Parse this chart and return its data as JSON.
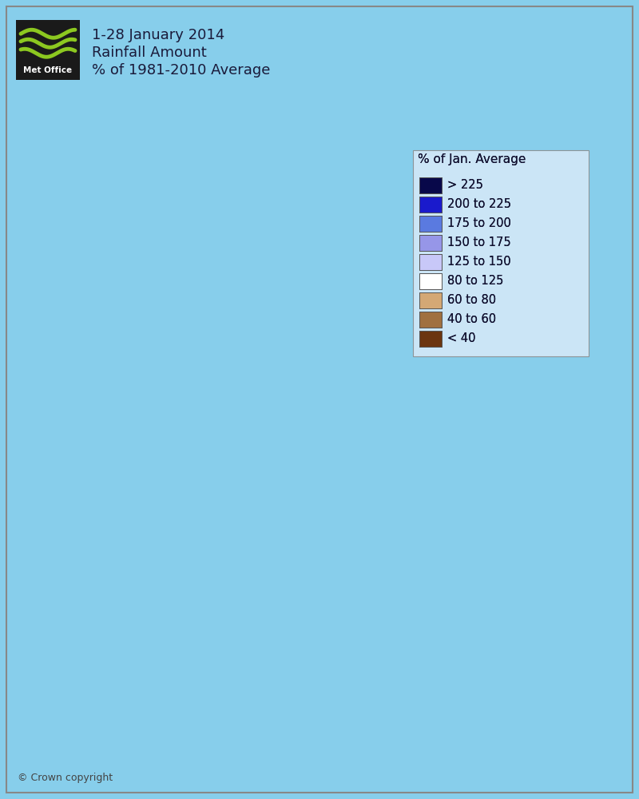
{
  "title_line1": "1-28 January 2014",
  "title_line2": "Rainfall Amount",
  "title_line3": "% of 1981-2010 Average",
  "legend_title": "% of Jan. Average",
  "legend_labels": [
    "> 225",
    "200 to 225",
    "175 to 200",
    "150 to 175",
    "125 to 150",
    "80 to 125",
    "60 to 80",
    "40 to 60",
    "< 40"
  ],
  "legend_colors": [
    "#08084a",
    "#1a1acc",
    "#5a7ae0",
    "#9696e8",
    "#c8c8f8",
    "#ffffff",
    "#d4a875",
    "#a07040",
    "#6b3510"
  ],
  "background_color": "#87CEEB",
  "border_color": "#888888",
  "copyright_text": "© Crown copyright",
  "title_fontsize": 13,
  "legend_fontsize": 10.5,
  "logo_bg": "#1a1a1a",
  "logo_wave": "#8cc820",
  "logo_text": "Met Office"
}
